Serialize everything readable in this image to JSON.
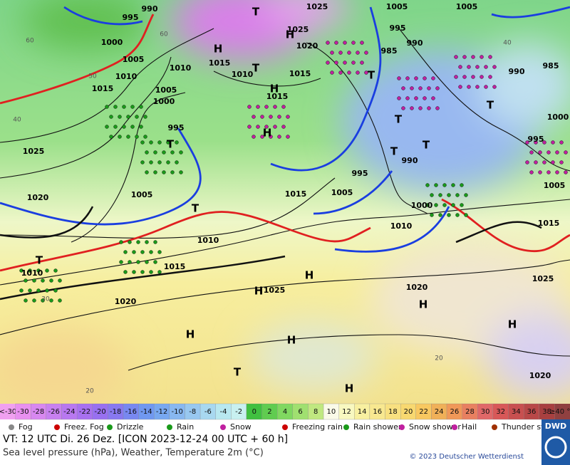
{
  "map": {
    "isobar_labels": [
      "1000",
      "1005",
      "1010",
      "1015",
      "1015",
      "1010",
      "1010",
      "1015",
      "1020",
      "1025",
      "995",
      "985",
      "990",
      "990",
      "985",
      "1000",
      "995",
      "990",
      "995",
      "1005",
      "1000",
      "995",
      "1025",
      "1020",
      "1005",
      "1015",
      "1005",
      "1000",
      "1010",
      "1010",
      "1015",
      "1010",
      "1020",
      "1025",
      "1020",
      "1015",
      "1005",
      "1025",
      "1020",
      "1015",
      "990",
      "995",
      "1025",
      "1005",
      "1005"
    ],
    "pressure_centers": [
      "H",
      "H",
      "H",
      "H",
      "H",
      "H",
      "H",
      "H",
      "H",
      "H",
      "H",
      "T",
      "T",
      "T",
      "T",
      "T",
      "T",
      "T",
      "T",
      "T",
      "T",
      "T"
    ],
    "latitude_labels": [
      "60",
      "50",
      "40",
      "30",
      "20",
      "20",
      "60",
      "40"
    ]
  },
  "temperature_scale": {
    "low_label": "<-30",
    "low_color": "#f0a0f0",
    "values": [
      -30,
      -28,
      -26,
      -24,
      -22,
      -20,
      -18,
      -16,
      -14,
      -12,
      -10,
      -8,
      -6,
      -4,
      -2,
      0,
      2,
      4,
      6,
      8,
      10,
      12,
      14,
      16,
      18,
      20,
      22,
      24,
      26,
      28,
      30,
      32,
      34,
      36,
      38
    ],
    "colors": [
      "#e890f0",
      "#d888f0",
      "#c880f0",
      "#b878f0",
      "#a870f0",
      "#9870f0",
      "#8878f0",
      "#7888f0",
      "#7098f0",
      "#78a8f0",
      "#88b8f0",
      "#98c8f0",
      "#a8d8f0",
      "#b8e8f0",
      "#c8f0f0",
      "#40c040",
      "#60cc50",
      "#80d860",
      "#a0e070",
      "#c0e880",
      "#fafae8",
      "#f8f8c0",
      "#f8f0a0",
      "#f8e890",
      "#f8e080",
      "#f8d870",
      "#f8c860",
      "#f0b058",
      "#f09858",
      "#e88060",
      "#e06868",
      "#d85858",
      "#c85050",
      "#b84848",
      "#a84040"
    ],
    "high_label": "≥40 °C",
    "high_color": "#904040"
  },
  "legend": [
    "Fog",
    "Freez. Fog",
    "Drizzle",
    "Rain",
    "Snow",
    "Freezing rain",
    "Rain shower",
    "Snow shower",
    "Hail",
    "Thunder storm"
  ],
  "footer": {
    "valid_time": "VT: 12 UTC Di.  26 Dez. [ICON 2023-12-24  00 UTC + 60 h]",
    "description": "Sea level pressure (hPa), Weather, Temperature 2m (°C)",
    "copyright": "© 2023 Deutscher Wetterdienst",
    "logo": "DWD"
  }
}
